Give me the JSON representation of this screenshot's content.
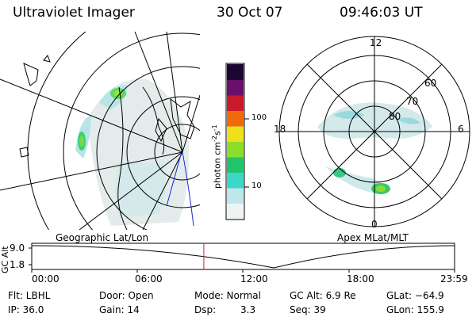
{
  "header": {
    "title": "Ultraviolet Imager",
    "date": "30 Oct 07",
    "time": "09:46:03 UT"
  },
  "colorbar": {
    "ticks": [
      "100",
      "10"
    ],
    "unit_main": "photon cm",
    "unit_exp1": "-2",
    "unit_mid": "s",
    "unit_exp2": "-1",
    "colors": [
      "#1a0633",
      "#6a0f6b",
      "#c81a2a",
      "#f06a0a",
      "#f0e01a",
      "#8ade2a",
      "#22c46a",
      "#3ad8c8",
      "#bfe6ea",
      "#eef4f4"
    ]
  },
  "left_map": {
    "caption": "Geographic Lat/Lon"
  },
  "right_map": {
    "caption": "Apex MLat/MLT",
    "mlt_labels": {
      "top": "12",
      "bottom": "0",
      "left": "18",
      "right": "6"
    },
    "lat_labels": [
      "60",
      "70",
      "80"
    ]
  },
  "timeline": {
    "ylabel": "GC Alt",
    "y_ticks": [
      "9.0",
      "1.8"
    ],
    "x_ticks": [
      "00:00",
      "06:00",
      "12:00",
      "18:00",
      "23:59"
    ],
    "current_time_fraction": 0.407
  },
  "info": {
    "flt": "Flt: LBHL",
    "ip": "IP: 36.0",
    "door": "Door: Open",
    "gain": "Gain: 14",
    "mode": "Mode: Normal",
    "dsp_label": "Dsp:",
    "dsp_value": "3.3",
    "gc_alt": "GC Alt: 6.9 Re",
    "seq": "Seq: 39",
    "glat": "GLat: −64.9",
    "glon": "GLon: 155.9"
  }
}
